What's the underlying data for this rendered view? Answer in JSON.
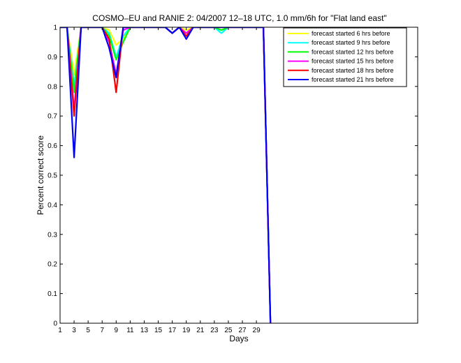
{
  "chart_data": {
    "type": "line",
    "title": "COSMO–EU and RANIE 2: 04/2007 12–18 UTC, 1.0 mm/6h for \"Flat land east\"",
    "xlabel": "Days",
    "ylabel": "Percent correct score",
    "xlim": [
      1,
      52
    ],
    "ylim": [
      0,
      1
    ],
    "xticks": [
      "1",
      "3",
      "5",
      "7",
      "9",
      "11",
      "13",
      "15",
      "17",
      "19",
      "21",
      "23",
      "25",
      "27",
      "29"
    ],
    "yticks": [
      "0",
      "0.1",
      "0.2",
      "0.3",
      "0.4",
      "0.5",
      "0.6",
      "0.7",
      "0.8",
      "0.9",
      "1"
    ],
    "grid": false,
    "legend_position": "top-right",
    "series": [
      {
        "name": "forecast started 6 hrs before",
        "color": "#ffff00",
        "x": [
          1,
          2,
          3,
          4,
          5,
          6,
          7,
          8,
          9,
          10,
          11,
          12,
          13,
          14,
          15,
          16,
          17,
          18,
          19,
          20,
          21,
          22,
          23,
          24,
          25,
          26,
          27,
          28,
          29,
          30,
          31
        ],
        "y": [
          1,
          1,
          0.84,
          1,
          1,
          1,
          1,
          0.99,
          0.94,
          0.96,
          1,
          1,
          1,
          1,
          1,
          1,
          0.98,
          1,
          0.99,
          1,
          1,
          1,
          1,
          0.99,
          1,
          1,
          1,
          1,
          1,
          1,
          0
        ]
      },
      {
        "name": "forecast started 9 hrs before",
        "color": "#00ffff",
        "x": [
          1,
          2,
          3,
          4,
          5,
          6,
          7,
          8,
          9,
          10,
          11,
          12,
          13,
          14,
          15,
          16,
          17,
          18,
          19,
          20,
          21,
          22,
          23,
          24,
          25,
          26,
          27,
          28,
          29,
          30,
          31
        ],
        "y": [
          1,
          1,
          0.8,
          1,
          1,
          1,
          1,
          0.98,
          0.9,
          0.97,
          1,
          1,
          1,
          1,
          1,
          1,
          0.98,
          1,
          0.98,
          1,
          1,
          1,
          1,
          0.98,
          1,
          1,
          1,
          1,
          1,
          1,
          0
        ]
      },
      {
        "name": "forecast started 12 hrs before",
        "color": "#00ff00",
        "x": [
          1,
          2,
          3,
          4,
          5,
          6,
          7,
          8,
          9,
          10,
          11,
          12,
          13,
          14,
          15,
          16,
          17,
          18,
          19,
          20,
          21,
          22,
          23,
          24,
          25,
          26,
          27,
          28,
          29,
          30,
          31
        ],
        "y": [
          1,
          1,
          0.78,
          1,
          1,
          1,
          1,
          0.97,
          0.89,
          0.95,
          1,
          1,
          1,
          1,
          1,
          1,
          0.98,
          1,
          0.98,
          1,
          1,
          1,
          1,
          0.99,
          1,
          1,
          1,
          1,
          1,
          1,
          0
        ]
      },
      {
        "name": "forecast started 15 hrs before",
        "color": "#ff00ff",
        "x": [
          1,
          2,
          3,
          4,
          5,
          6,
          7,
          8,
          9,
          10,
          11,
          12,
          13,
          14,
          15,
          16,
          17,
          18,
          19,
          20,
          21,
          22,
          23,
          24,
          25,
          26,
          27,
          28,
          29,
          30,
          31
        ],
        "y": [
          1,
          1,
          0.72,
          1,
          1,
          1,
          1,
          0.95,
          0.84,
          0.99,
          1,
          1,
          1,
          1,
          1,
          1,
          0.98,
          1,
          0.98,
          1,
          1,
          1,
          1,
          1,
          1,
          1,
          1,
          1,
          1,
          1,
          0
        ]
      },
      {
        "name": "forecast started 18 hrs before",
        "color": "#ff0000",
        "x": [
          1,
          2,
          3,
          4,
          5,
          6,
          7,
          8,
          9,
          10,
          11,
          12,
          13,
          14,
          15,
          16,
          17,
          18,
          19,
          20,
          21,
          22,
          23,
          24,
          25,
          26,
          27,
          28,
          29,
          30,
          31
        ],
        "y": [
          1,
          1,
          0.7,
          1,
          1,
          1,
          1,
          0.96,
          0.78,
          1,
          1,
          1,
          1,
          1,
          1,
          1,
          0.98,
          1,
          0.97,
          1,
          1,
          1,
          1,
          1,
          1,
          1,
          1,
          1,
          1,
          1,
          0
        ]
      },
      {
        "name": "forecast started 21 hrs before",
        "color": "#0000ff",
        "x": [
          1,
          2,
          3,
          4,
          5,
          6,
          7,
          8,
          9,
          10,
          11,
          12,
          13,
          14,
          15,
          16,
          17,
          18,
          19,
          20,
          21,
          22,
          23,
          24,
          25,
          26,
          27,
          28,
          29,
          30,
          31
        ],
        "y": [
          1,
          1,
          0.56,
          1,
          1,
          1,
          1,
          0.93,
          0.83,
          1,
          1,
          1,
          1,
          1,
          1,
          1,
          0.98,
          1,
          0.96,
          1,
          1,
          1,
          1,
          1,
          1,
          1,
          1,
          1,
          1,
          1,
          0
        ]
      }
    ]
  }
}
